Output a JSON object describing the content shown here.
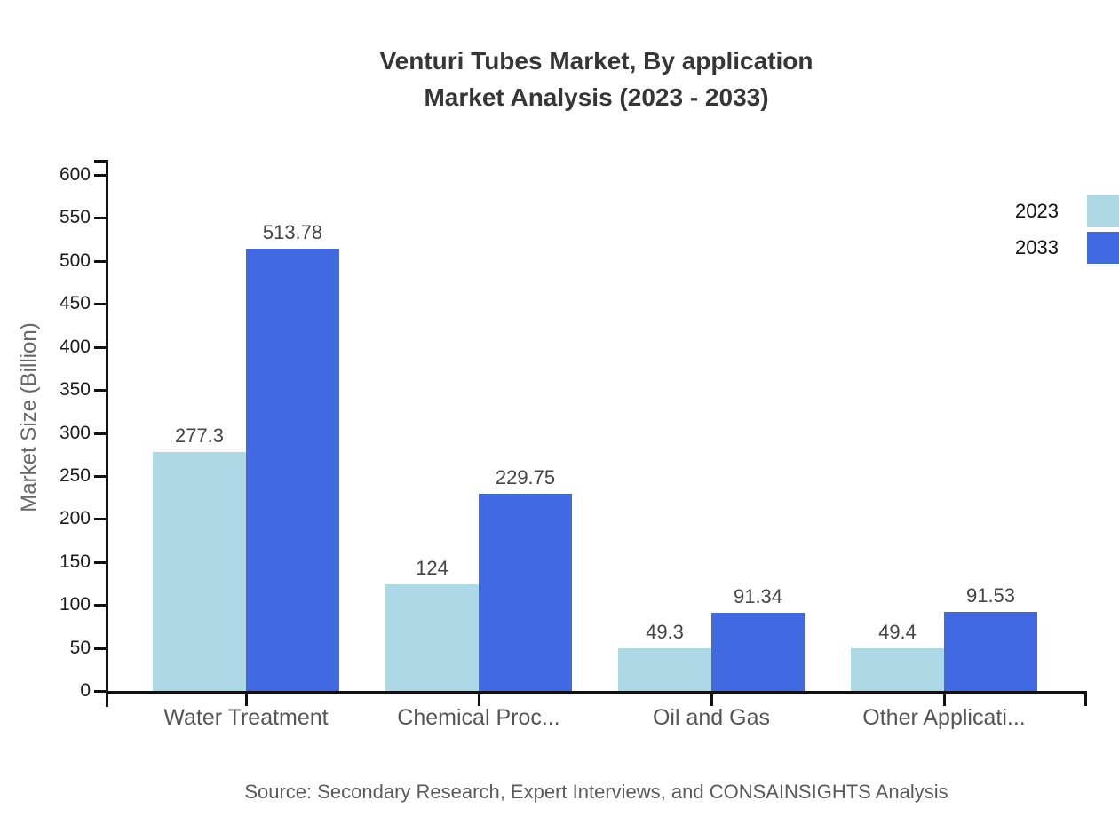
{
  "chart_data": {
    "type": "bar",
    "title_line1": "Venturi Tubes Market, By application",
    "title_line2": "Market Analysis (2023 - 2033)",
    "ylabel": "Market Size (Billion)",
    "categories": [
      "Water Treatment",
      "Chemical Proc...",
      "Oil and Gas",
      "Other Applicati..."
    ],
    "series": [
      {
        "name": "2023",
        "color": "#ADD8E6",
        "values": [
          277.3,
          124,
          49.3,
          49.4
        ],
        "value_labels": [
          "277.3",
          "124",
          "49.3",
          "49.4"
        ]
      },
      {
        "name": "2033",
        "color": "#4169E1",
        "values": [
          513.78,
          229.75,
          91.34,
          91.53
        ],
        "value_labels": [
          "513.78",
          "229.75",
          "91.34",
          "91.53"
        ]
      }
    ],
    "ylim": [
      0,
      600
    ],
    "ytick_step": 50,
    "grid": false,
    "legend_position": "top-right",
    "source": "Source: Secondary Research, Expert Interviews, and CONSAINSIGHTS Analysis"
  }
}
